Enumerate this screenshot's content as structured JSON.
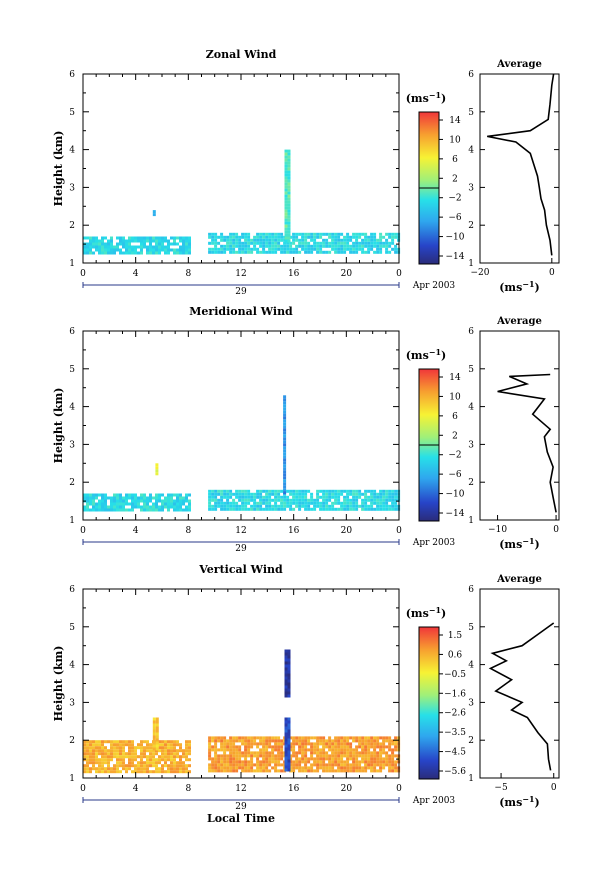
{
  "figure": {
    "xlabel": "Local Time",
    "date_label": "Apr 2003",
    "day_label": "29",
    "xticks": [
      "0",
      "4",
      "8",
      "12",
      "16",
      "20",
      "0"
    ],
    "yticks": [
      "1",
      "2",
      "3",
      "4",
      "5",
      "6"
    ],
    "ylabel": "Height (km)",
    "colorbar_unit": "(ms",
    "colorbar_unit_exp": "−1",
    "colorbar_unit_close": ")",
    "avg_title": "Average",
    "avg_unit": "(ms",
    "avg_unit_exp": "−1",
    "avg_unit_close": ")"
  },
  "chart_data": [
    {
      "type": "heatmap",
      "title": "Zonal Wind",
      "xlabel": "",
      "ylabel": "Height (km)",
      "x_range": [
        0,
        24
      ],
      "ylim": [
        1,
        6
      ],
      "colorbar_ticks": [
        "14",
        "10",
        "6",
        "2",
        "−2",
        "−6",
        "−10",
        "−14"
      ],
      "colorbar_range": [
        -16,
        16
      ],
      "data_gap_hours": [
        8,
        9.5
      ],
      "features": [
        {
          "x": [
            0,
            8
          ],
          "height": [
            1.3,
            1.7
          ],
          "value": -3
        },
        {
          "x": [
            9.5,
            24
          ],
          "height": [
            1.3,
            1.8
          ],
          "value": -3
        },
        {
          "x": [
            15.3,
            15.6
          ],
          "height": [
            1.6,
            4.0
          ],
          "value": -1
        },
        {
          "x": [
            5.3,
            5.5
          ],
          "height": [
            2.3,
            2.4
          ],
          "value": -8
        }
      ],
      "average_profile": {
        "xlim": [
          -20,
          2
        ],
        "xticks": [
          "−20",
          "0"
        ],
        "height": [
          1.2,
          1.6,
          2.0,
          2.4,
          2.7,
          3.0,
          3.3,
          3.6,
          3.9,
          4.2,
          4.35,
          4.5,
          4.8,
          5.2,
          5.7,
          6.0
        ],
        "value": [
          0,
          -0.5,
          -1.5,
          -2,
          -3,
          -3.5,
          -4,
          -5,
          -6,
          -10,
          -18,
          -6,
          -1,
          -0.5,
          0,
          0.5
        ]
      }
    },
    {
      "type": "heatmap",
      "title": "Meridional Wind",
      "xlabel": "",
      "ylabel": "Height (km)",
      "x_range": [
        0,
        24
      ],
      "ylim": [
        1,
        6
      ],
      "colorbar_ticks": [
        "14",
        "10",
        "6",
        "2",
        "−2",
        "−6",
        "−10",
        "−14"
      ],
      "colorbar_range": [
        -16,
        16
      ],
      "data_gap_hours": [
        8,
        9.5
      ],
      "features": [
        {
          "x": [
            0,
            8
          ],
          "height": [
            1.3,
            1.7
          ],
          "value": -3
        },
        {
          "x": [
            9.5,
            24
          ],
          "height": [
            1.3,
            1.8
          ],
          "value": -3
        },
        {
          "x": [
            15.2,
            15.4
          ],
          "height": [
            1.7,
            4.3
          ],
          "value": -8
        },
        {
          "x": [
            5.5,
            5.7
          ],
          "height": [
            2.2,
            2.5
          ],
          "value": 5
        }
      ],
      "average_profile": {
        "xlim": [
          -13,
          0.5
        ],
        "xticks": [
          "−10",
          "0"
        ],
        "height": [
          1.2,
          1.6,
          2.0,
          2.4,
          2.8,
          3.2,
          3.4,
          3.8,
          4.2,
          4.4,
          4.6,
          4.8,
          4.85
        ],
        "value": [
          0,
          -0.5,
          -1,
          -0.5,
          -1.5,
          -2,
          -1,
          -4,
          -2,
          -10,
          -5,
          -8,
          -1
        ]
      }
    },
    {
      "type": "heatmap",
      "title": "Vertical Wind",
      "xlabel": "Local Time",
      "ylabel": "Height (km)",
      "x_range": [
        0,
        24
      ],
      "ylim": [
        1,
        6
      ],
      "colorbar_ticks": [
        "1.5",
        "0.6",
        "−0.5",
        "−1.6",
        "−2.6",
        "−3.5",
        "−4.5",
        "−5.6"
      ],
      "colorbar_range": [
        -6,
        2
      ],
      "data_gap_hours": [
        8,
        9.5
      ],
      "features": [
        {
          "x": [
            0,
            8
          ],
          "height": [
            1.2,
            2.0
          ],
          "value": 0.5
        },
        {
          "x": [
            9.5,
            24
          ],
          "height": [
            1.2,
            2.1
          ],
          "value": 0.8
        },
        {
          "x": [
            15.3,
            15.7
          ],
          "height": [
            1.2,
            2.6
          ],
          "value": -5
        },
        {
          "x": [
            15.3,
            15.6
          ],
          "height": [
            3.2,
            4.4
          ],
          "value": -5.5
        },
        {
          "x": [
            5.3,
            5.6
          ],
          "height": [
            1.8,
            2.6
          ],
          "value": 0.2
        }
      ],
      "average_profile": {
        "xlim": [
          -7,
          0.5
        ],
        "xticks": [
          "−5",
          "0"
        ],
        "height": [
          1.2,
          1.5,
          1.9,
          2.2,
          2.6,
          2.8,
          3.0,
          3.3,
          3.6,
          3.9,
          4.1,
          4.3,
          4.5,
          4.8,
          5.1
        ],
        "value": [
          -0.3,
          -0.5,
          -0.6,
          -1.5,
          -2.5,
          -4,
          -3,
          -5.5,
          -4,
          -6,
          -4.5,
          -5.8,
          -3,
          -1.5,
          0
        ]
      }
    }
  ]
}
